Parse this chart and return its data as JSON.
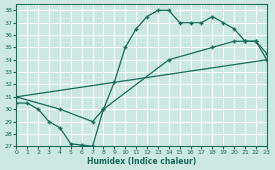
{
  "xlabel": "Humidex (Indice chaleur)",
  "bg_color": "#cce8e2",
  "grid_color": "#b8d8d0",
  "line_color": "#1a6b5a",
  "xlim": [
    0,
    23
  ],
  "ylim": [
    27,
    38.5
  ],
  "yticks": [
    27,
    28,
    29,
    30,
    31,
    32,
    33,
    34,
    35,
    36,
    37,
    38
  ],
  "xticks": [
    0,
    1,
    2,
    3,
    4,
    5,
    6,
    7,
    8,
    9,
    10,
    11,
    12,
    13,
    14,
    15,
    16,
    17,
    18,
    19,
    20,
    21,
    22,
    23
  ],
  "line1_x": [
    0,
    1,
    2,
    3,
    4,
    5,
    6,
    7,
    8,
    9,
    10,
    11,
    12,
    13,
    14,
    15,
    16,
    17,
    18,
    19,
    20,
    21,
    22,
    23
  ],
  "line1_y": [
    30.5,
    30.5,
    30.0,
    29.0,
    28.5,
    27.2,
    27.1,
    27.0,
    30.0,
    32.2,
    35.0,
    36.5,
    37.5,
    38.0,
    38.0,
    37.0,
    37.0,
    37.0,
    37.5,
    37.0,
    36.5,
    35.5,
    35.5,
    34.0
  ],
  "line2_x": [
    0,
    4,
    7,
    8,
    14,
    18,
    20,
    21,
    22,
    23
  ],
  "line2_y": [
    31.0,
    30.0,
    29.0,
    30.0,
    34.0,
    35.0,
    35.5,
    35.5,
    35.5,
    34.5
  ],
  "line3_x": [
    0,
    23
  ],
  "line3_y": [
    31.0,
    34.0
  ]
}
